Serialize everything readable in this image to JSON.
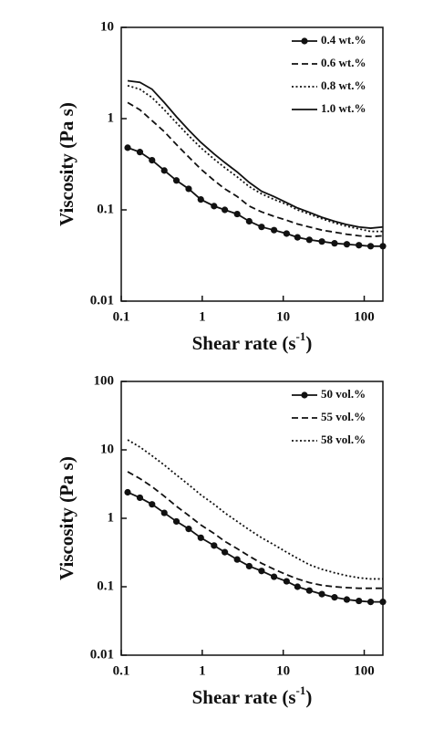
{
  "chart_data": [
    {
      "type": "line",
      "y_label": "Viscosity (Pa s)",
      "x_label": {
        "text": "Shear rate (s",
        "superscript": "-1",
        "suffix": ")"
      },
      "log_x": true,
      "log_y": true,
      "legend": "upper right",
      "xlim": [
        0.1,
        170
      ],
      "xticks": [
        0.1,
        1,
        10,
        100
      ],
      "ylim": [
        0.01,
        10
      ],
      "yticks": [
        0.01,
        0.1,
        1,
        10
      ],
      "x": [
        0.12,
        0.17,
        0.24,
        0.34,
        0.48,
        0.68,
        0.96,
        1.4,
        1.9,
        2.7,
        3.8,
        5.4,
        7.7,
        11,
        15,
        21,
        30,
        43,
        61,
        86,
        120,
        170
      ],
      "series": [
        {
          "name": "0.4 wt.%",
          "color": "#111111",
          "dash": "solid",
          "marker": "circle",
          "values": [
            0.48,
            0.43,
            0.35,
            0.27,
            0.21,
            0.17,
            0.13,
            0.11,
            0.1,
            0.09,
            0.075,
            0.065,
            0.06,
            0.055,
            0.05,
            0.047,
            0.045,
            0.043,
            0.042,
            0.041,
            0.04,
            0.04
          ]
        },
        {
          "name": "0.6 wt.%",
          "color": "#111111",
          "dash": "dashed",
          "values": [
            1.5,
            1.25,
            0.95,
            0.72,
            0.52,
            0.38,
            0.28,
            0.21,
            0.17,
            0.14,
            0.11,
            0.095,
            0.085,
            0.077,
            0.07,
            0.065,
            0.06,
            0.057,
            0.054,
            0.052,
            0.051,
            0.052
          ]
        },
        {
          "name": "0.8 wt.%",
          "color": "#111111",
          "dash": "dotted",
          "values": [
            2.3,
            2.1,
            1.7,
            1.25,
            0.9,
            0.65,
            0.48,
            0.36,
            0.29,
            0.23,
            0.18,
            0.15,
            0.13,
            0.115,
            0.1,
            0.09,
            0.08,
            0.072,
            0.066,
            0.062,
            0.058,
            0.058
          ]
        },
        {
          "name": "1.0 wt.%",
          "color": "#111111",
          "dash": "solid",
          "values": [
            2.6,
            2.5,
            2.1,
            1.5,
            1.05,
            0.75,
            0.55,
            0.41,
            0.33,
            0.26,
            0.2,
            0.16,
            0.14,
            0.12,
            0.105,
            0.094,
            0.083,
            0.075,
            0.069,
            0.065,
            0.063,
            0.065
          ]
        }
      ]
    },
    {
      "type": "line",
      "y_label": "Viscosity (Pa s)",
      "x_label": {
        "text": "Shear rate (s",
        "superscript": "-1",
        "suffix": ")"
      },
      "log_x": true,
      "log_y": true,
      "legend": "upper right",
      "xlim": [
        0.1,
        170
      ],
      "xticks": [
        0.1,
        1,
        10,
        100
      ],
      "ylim": [
        0.01,
        100
      ],
      "yticks": [
        0.01,
        0.1,
        1,
        10,
        100
      ],
      "x": [
        0.12,
        0.17,
        0.24,
        0.34,
        0.48,
        0.68,
        0.96,
        1.4,
        1.9,
        2.7,
        3.8,
        5.4,
        7.7,
        11,
        15,
        21,
        30,
        43,
        61,
        86,
        120,
        170
      ],
      "series": [
        {
          "name": "50 vol.%",
          "color": "#111111",
          "dash": "solid",
          "marker": "circle",
          "values": [
            2.4,
            2.0,
            1.6,
            1.2,
            0.9,
            0.7,
            0.52,
            0.4,
            0.32,
            0.25,
            0.2,
            0.17,
            0.14,
            0.12,
            0.1,
            0.088,
            0.078,
            0.07,
            0.065,
            0.062,
            0.06,
            0.06
          ]
        },
        {
          "name": "55 vol.%",
          "color": "#111111",
          "dash": "dashed",
          "values": [
            4.8,
            3.8,
            2.9,
            2.1,
            1.5,
            1.1,
            0.8,
            0.6,
            0.46,
            0.36,
            0.28,
            0.22,
            0.18,
            0.15,
            0.13,
            0.115,
            0.105,
            0.1,
            0.097,
            0.095,
            0.095,
            0.095
          ]
        },
        {
          "name": "58 vol.%",
          "color": "#111111",
          "dash": "dotted",
          "values": [
            14,
            11,
            8.2,
            6,
            4.3,
            3.1,
            2.2,
            1.6,
            1.2,
            0.9,
            0.68,
            0.52,
            0.41,
            0.32,
            0.26,
            0.21,
            0.18,
            0.16,
            0.145,
            0.135,
            0.13,
            0.13
          ]
        }
      ]
    }
  ]
}
